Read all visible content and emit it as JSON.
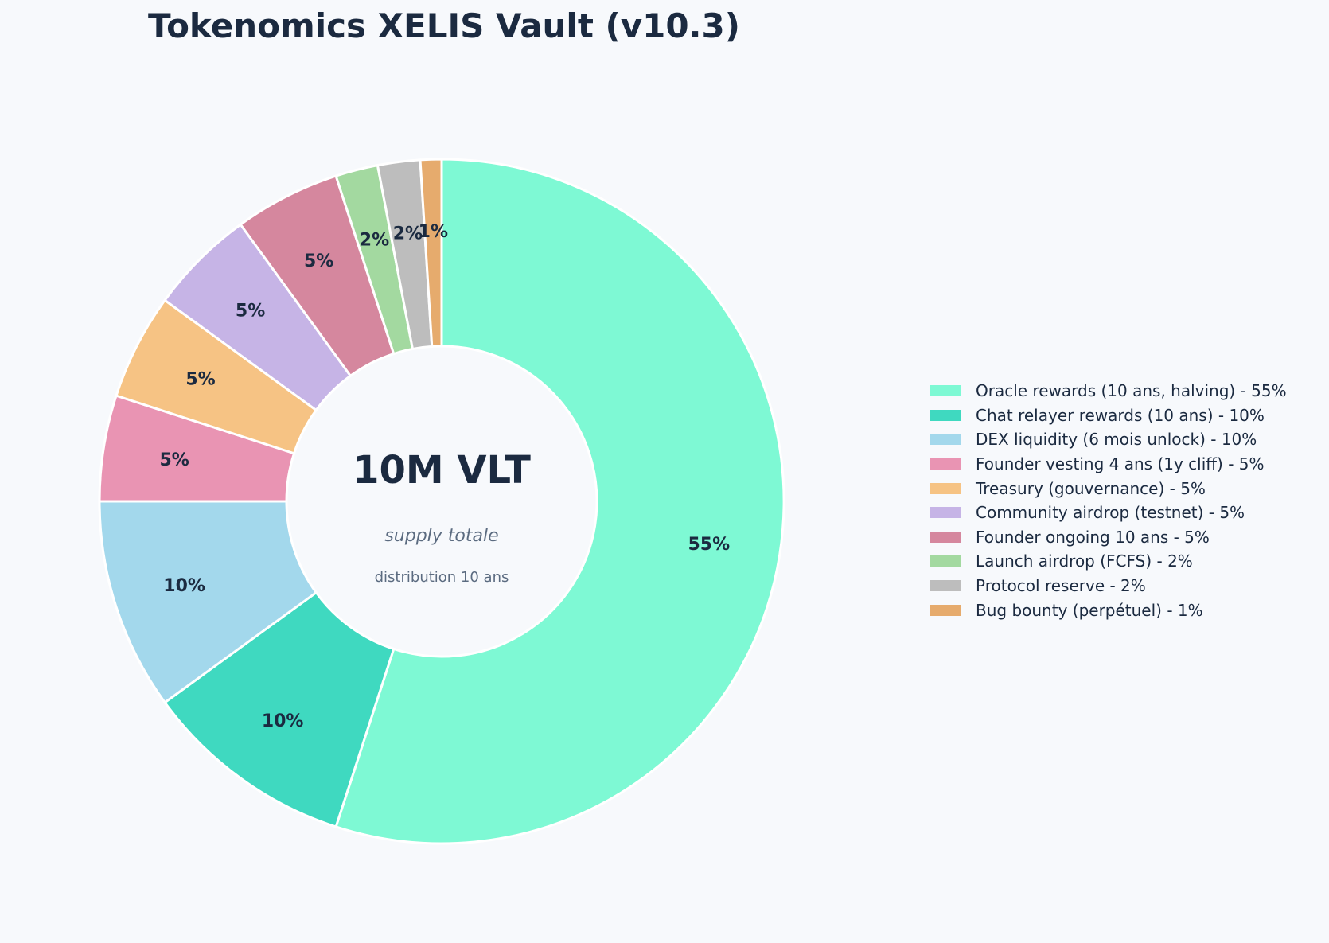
{
  "chart_data": {
    "type": "pie",
    "title": "Tokenomics XELIS Vault (v10.3)",
    "center_text": {
      "main": "10M VLT",
      "sub": "supply totale",
      "note": "distribution 10 ans"
    },
    "legend_position": "right",
    "slices": [
      {
        "name": "Oracle rewards (10 ans, halving)",
        "value": 55,
        "label": "55%",
        "legend": "Oracle rewards (10 ans, halving)  -  55%",
        "color": "#7ef9d4"
      },
      {
        "name": "Chat relayer rewards (10 ans)",
        "value": 10,
        "label": "10%",
        "legend": "Chat relayer rewards (10 ans)  -  10%",
        "color": "#3fd9c0"
      },
      {
        "name": "DEX liquidity (6 mois unlock)",
        "value": 10,
        "label": "10%",
        "legend": "DEX liquidity (6 mois unlock)  -  10%",
        "color": "#a3d8ec"
      },
      {
        "name": "Founder vesting 4 ans (1y cliff)",
        "value": 5,
        "label": "5%",
        "legend": "Founder vesting 4 ans (1y cliff)  -  5%",
        "color": "#e994b3"
      },
      {
        "name": "Treasury (gouvernance)",
        "value": 5,
        "label": "5%",
        "legend": "Treasury (gouvernance)  -  5%",
        "color": "#f6c384"
      },
      {
        "name": "Community airdrop (testnet)",
        "value": 5,
        "label": "5%",
        "legend": "Community airdrop (testnet)  -  5%",
        "color": "#c6b4e6"
      },
      {
        "name": "Founder ongoing 10 ans",
        "value": 5,
        "label": "5%",
        "legend": "Founder ongoing 10 ans  -  5%",
        "color": "#d5879e"
      },
      {
        "name": "Launch airdrop (FCFS)",
        "value": 2,
        "label": "2%",
        "legend": "Launch airdrop (FCFS)  -  2%",
        "color": "#a3d9a0"
      },
      {
        "name": "Protocol reserve",
        "value": 2,
        "label": "2%",
        "legend": "Protocol reserve  -  2%",
        "color": "#bdbdbd"
      },
      {
        "name": "Bug bounty (perpétuel)",
        "value": 1,
        "label": "1%",
        "legend": "Bug bounty (perpétuel)  -  1%",
        "color": "#e6ab6d"
      }
    ]
  }
}
